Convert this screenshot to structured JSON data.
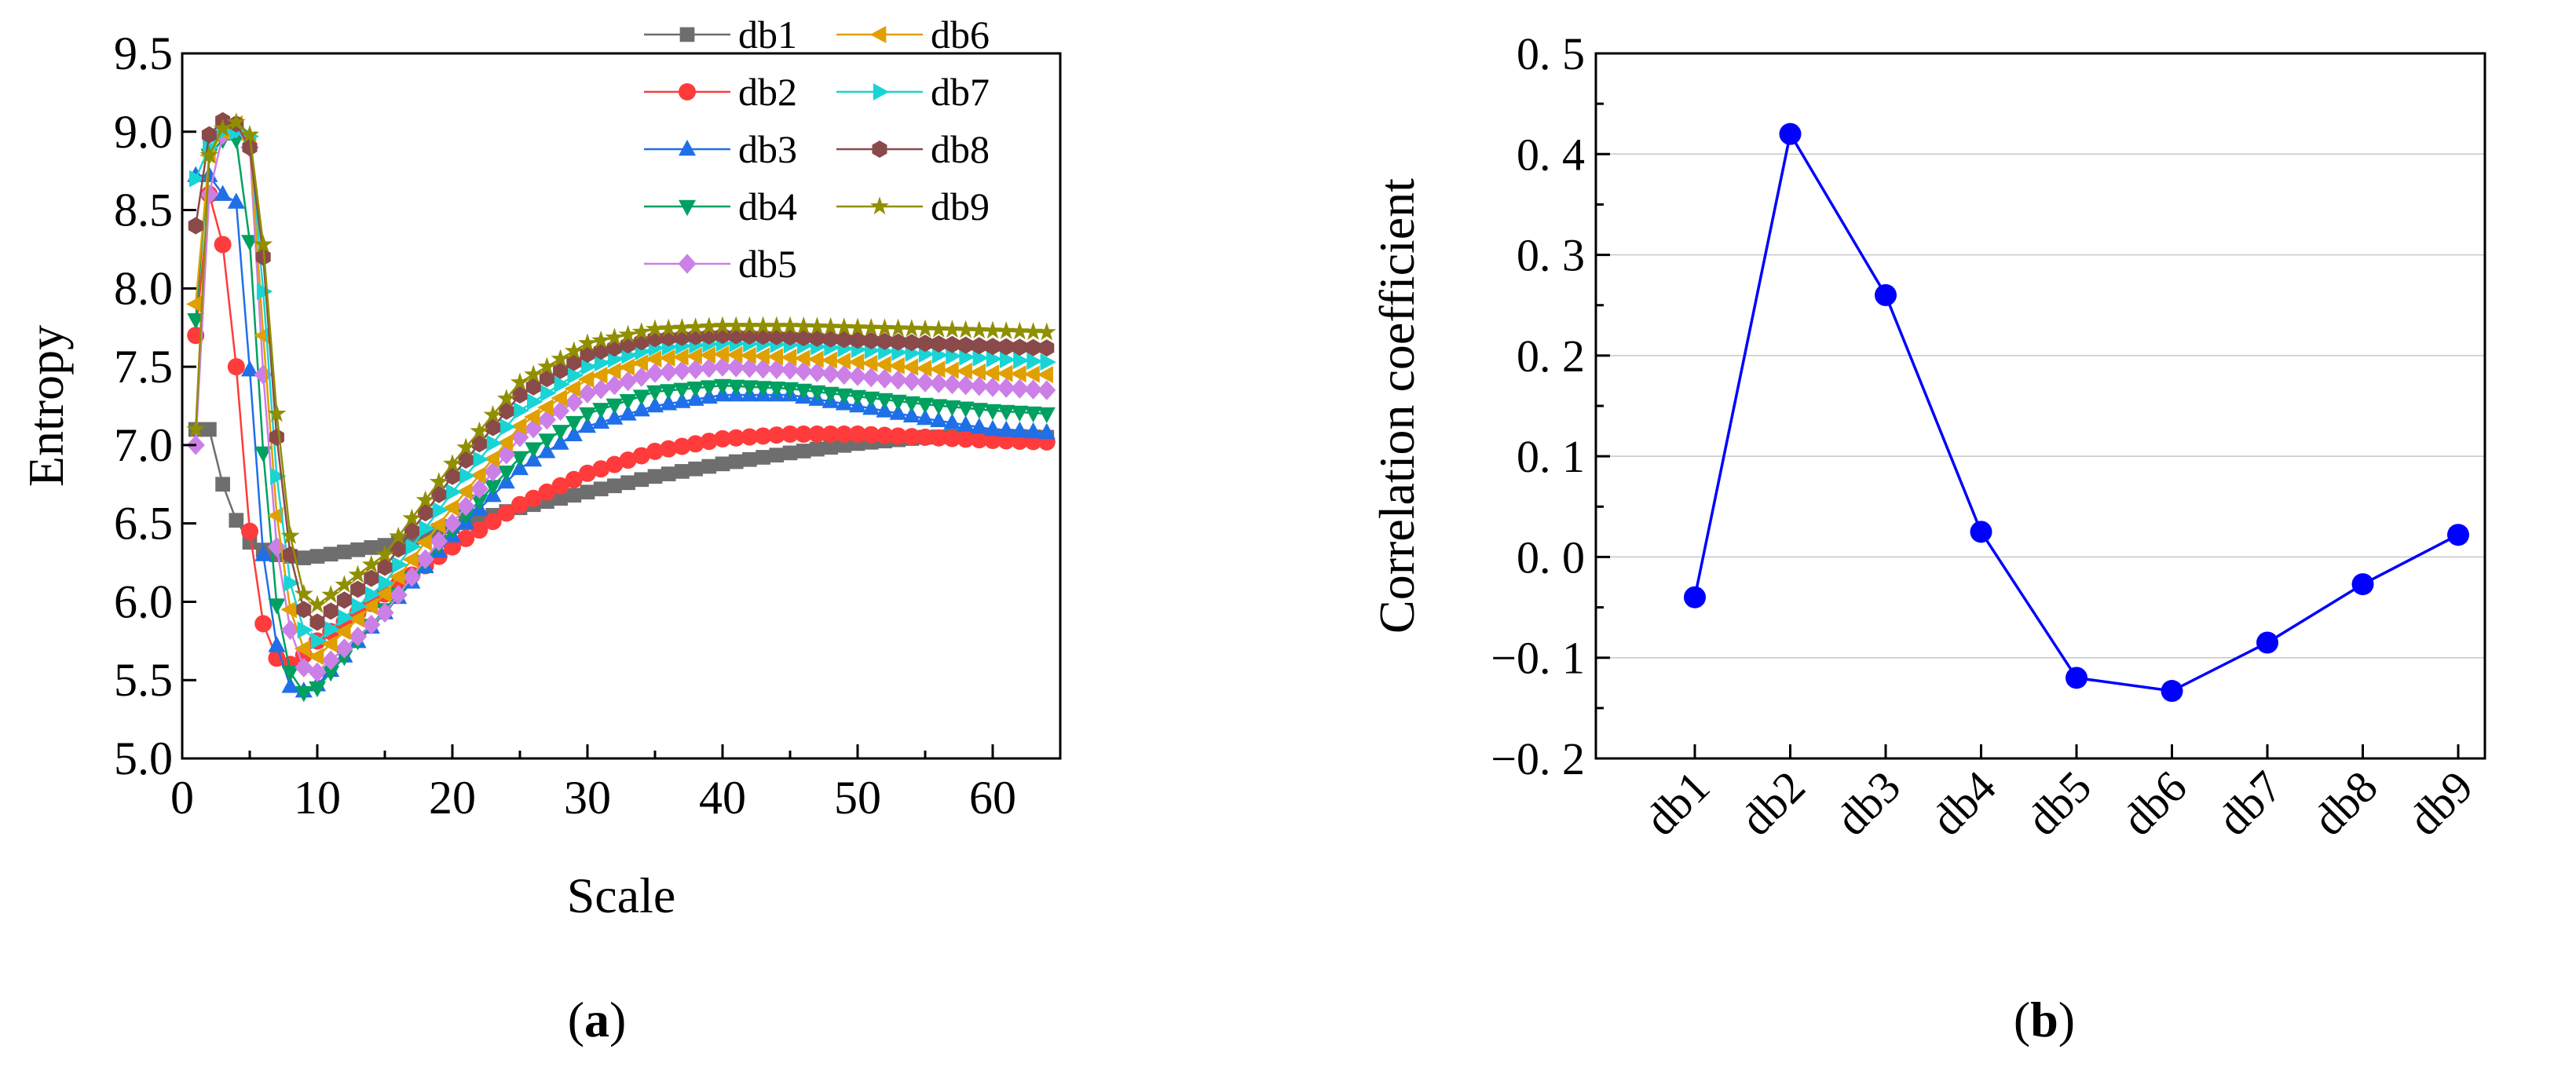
{
  "chart_data": [
    {
      "panel": "a",
      "caption": "(a)",
      "type": "line",
      "xlabel": "Scale",
      "ylabel": "Entropy",
      "xlim": [
        0,
        65
      ],
      "ylim": [
        5.0,
        9.5
      ],
      "xticks": [
        0,
        10,
        20,
        30,
        40,
        50,
        60
      ],
      "yticks": [
        5.0,
        5.5,
        6.0,
        6.5,
        7.0,
        7.5,
        8.0,
        8.5,
        9.0,
        9.5
      ],
      "legend_position": "top-right",
      "series": [
        {
          "name": "db1",
          "color": "#6e6e6e",
          "marker": "square",
          "key": [
            [
              1,
              7.1
            ],
            [
              2,
              7.1
            ],
            [
              3,
              6.75
            ],
            [
              4,
              6.52
            ],
            [
              5,
              6.38
            ],
            [
              6,
              6.33
            ],
            [
              7,
              6.3
            ],
            [
              8,
              6.29
            ],
            [
              9,
              6.28
            ],
            [
              10,
              6.29
            ],
            [
              15,
              6.36
            ],
            [
              20,
              6.48
            ],
            [
              25,
              6.6
            ],
            [
              30,
              6.7
            ],
            [
              35,
              6.8
            ],
            [
              40,
              6.88
            ],
            [
              45,
              6.95
            ],
            [
              50,
              7.01
            ],
            [
              55,
              7.05
            ],
            [
              60,
              7.06
            ],
            [
              64,
              7.05
            ]
          ]
        },
        {
          "name": "db2",
          "color": "#ff3b3b",
          "marker": "circle",
          "key": [
            [
              1,
              7.7
            ],
            [
              2,
              8.6
            ],
            [
              3,
              8.28
            ],
            [
              4,
              7.5
            ],
            [
              5,
              6.45
            ],
            [
              6,
              5.86
            ],
            [
              7,
              5.64
            ],
            [
              8,
              5.6
            ],
            [
              9,
              5.66
            ],
            [
              10,
              5.75
            ],
            [
              15,
              6.05
            ],
            [
              20,
              6.35
            ],
            [
              25,
              6.62
            ],
            [
              30,
              6.82
            ],
            [
              35,
              6.96
            ],
            [
              40,
              7.04
            ],
            [
              45,
              7.07
            ],
            [
              50,
              7.07
            ],
            [
              55,
              7.05
            ],
            [
              60,
              7.03
            ],
            [
              64,
              7.02
            ]
          ]
        },
        {
          "name": "db3",
          "color": "#1f6fe8",
          "marker": "triangle-up",
          "key": [
            [
              1,
              8.72
            ],
            [
              2,
              8.72
            ],
            [
              3,
              8.6
            ],
            [
              4,
              8.55
            ],
            [
              5,
              7.48
            ],
            [
              6,
              6.3
            ],
            [
              7,
              5.72
            ],
            [
              8,
              5.46
            ],
            [
              9,
              5.43
            ],
            [
              10,
              5.47
            ],
            [
              15,
              5.93
            ],
            [
              20,
              6.42
            ],
            [
              25,
              6.85
            ],
            [
              30,
              7.12
            ],
            [
              35,
              7.25
            ],
            [
              40,
              7.32
            ],
            [
              45,
              7.32
            ],
            [
              50,
              7.25
            ],
            [
              55,
              7.17
            ],
            [
              60,
              7.1
            ],
            [
              64,
              7.08
            ]
          ]
        },
        {
          "name": "db4",
          "color": "#00a060",
          "marker": "triangle-down",
          "key": [
            [
              1,
              7.8
            ],
            [
              2,
              8.85
            ],
            [
              3,
              8.95
            ],
            [
              4,
              8.95
            ],
            [
              5,
              8.3
            ],
            [
              6,
              6.95
            ],
            [
              7,
              5.98
            ],
            [
              8,
              5.55
            ],
            [
              9,
              5.42
            ],
            [
              10,
              5.45
            ],
            [
              15,
              5.95
            ],
            [
              20,
              6.46
            ],
            [
              25,
              6.92
            ],
            [
              30,
              7.2
            ],
            [
              35,
              7.34
            ],
            [
              40,
              7.38
            ],
            [
              45,
              7.36
            ],
            [
              50,
              7.31
            ],
            [
              55,
              7.26
            ],
            [
              60,
              7.22
            ],
            [
              64,
              7.2
            ]
          ]
        },
        {
          "name": "db5",
          "color": "#cc7fe6",
          "marker": "diamond",
          "key": [
            [
              1,
              7.0
            ],
            [
              2,
              8.6
            ],
            [
              3,
              8.98
            ],
            [
              4,
              9.02
            ],
            [
              5,
              8.9
            ],
            [
              6,
              7.45
            ],
            [
              7,
              6.35
            ],
            [
              8,
              5.82
            ],
            [
              9,
              5.58
            ],
            [
              10,
              5.55
            ],
            [
              15,
              5.93
            ],
            [
              20,
              6.5
            ],
            [
              25,
              7.05
            ],
            [
              30,
              7.33
            ],
            [
              35,
              7.46
            ],
            [
              40,
              7.5
            ],
            [
              45,
              7.48
            ],
            [
              50,
              7.44
            ],
            [
              55,
              7.4
            ],
            [
              60,
              7.37
            ],
            [
              64,
              7.35
            ]
          ]
        },
        {
          "name": "db6",
          "color": "#e0a000",
          "marker": "triangle-left",
          "key": [
            [
              1,
              7.9
            ],
            [
              2,
              8.85
            ],
            [
              3,
              9.0
            ],
            [
              4,
              9.05
            ],
            [
              5,
              8.95
            ],
            [
              6,
              7.7
            ],
            [
              7,
              6.55
            ],
            [
              8,
              5.95
            ],
            [
              9,
              5.7
            ],
            [
              10,
              5.65
            ],
            [
              15,
              6.05
            ],
            [
              20,
              6.6
            ],
            [
              25,
              7.12
            ],
            [
              30,
              7.42
            ],
            [
              35,
              7.55
            ],
            [
              40,
              7.58
            ],
            [
              45,
              7.56
            ],
            [
              50,
              7.53
            ],
            [
              55,
              7.49
            ],
            [
              60,
              7.46
            ],
            [
              64,
              7.45
            ]
          ]
        },
        {
          "name": "db7",
          "color": "#19d4d4",
          "marker": "triangle-right",
          "key": [
            [
              1,
              8.7
            ],
            [
              2,
              8.9
            ],
            [
              3,
              9.0
            ],
            [
              4,
              9.0
            ],
            [
              5,
              8.97
            ],
            [
              6,
              7.98
            ],
            [
              7,
              6.8
            ],
            [
              8,
              6.12
            ],
            [
              9,
              5.82
            ],
            [
              10,
              5.75
            ],
            [
              15,
              6.12
            ],
            [
              20,
              6.7
            ],
            [
              25,
              7.22
            ],
            [
              30,
              7.5
            ],
            [
              35,
              7.62
            ],
            [
              40,
              7.65
            ],
            [
              45,
              7.64
            ],
            [
              50,
              7.61
            ],
            [
              55,
              7.58
            ],
            [
              60,
              7.55
            ],
            [
              64,
              7.53
            ]
          ]
        },
        {
          "name": "db8",
          "color": "#8b4a4a",
          "marker": "hexagon",
          "key": [
            [
              1,
              8.4
            ],
            [
              2,
              8.98
            ],
            [
              3,
              9.07
            ],
            [
              4,
              9.05
            ],
            [
              5,
              8.9
            ],
            [
              6,
              8.2
            ],
            [
              7,
              7.05
            ],
            [
              8,
              6.3
            ],
            [
              9,
              5.95
            ],
            [
              10,
              5.87
            ],
            [
              15,
              6.22
            ],
            [
              20,
              6.8
            ],
            [
              25,
              7.32
            ],
            [
              30,
              7.58
            ],
            [
              35,
              7.68
            ],
            [
              40,
              7.7
            ],
            [
              45,
              7.69
            ],
            [
              50,
              7.67
            ],
            [
              55,
              7.65
            ],
            [
              60,
              7.63
            ],
            [
              64,
              7.62
            ]
          ]
        },
        {
          "name": "db9",
          "color": "#8f8f00",
          "marker": "star",
          "key": [
            [
              1,
              7.1
            ],
            [
              2,
              8.85
            ],
            [
              3,
              9.02
            ],
            [
              4,
              9.06
            ],
            [
              5,
              8.98
            ],
            [
              6,
              8.28
            ],
            [
              7,
              7.2
            ],
            [
              8,
              6.42
            ],
            [
              9,
              6.05
            ],
            [
              10,
              5.98
            ],
            [
              15,
              6.3
            ],
            [
              20,
              6.88
            ],
            [
              25,
              7.4
            ],
            [
              30,
              7.65
            ],
            [
              35,
              7.74
            ],
            [
              40,
              7.76
            ],
            [
              45,
              7.76
            ],
            [
              50,
              7.75
            ],
            [
              55,
              7.74
            ],
            [
              60,
              7.73
            ],
            [
              64,
              7.72
            ]
          ]
        }
      ]
    },
    {
      "panel": "b",
      "caption": "(b)",
      "type": "line",
      "xlabel": "",
      "ylabel": "Correlation coefficient",
      "categories": [
        "db1",
        "db2",
        "db3",
        "db4",
        "db5",
        "db6",
        "db7",
        "db8",
        "db9"
      ],
      "values": [
        -0.04,
        0.42,
        0.26,
        0.025,
        -0.12,
        -0.133,
        -0.085,
        -0.027,
        0.022
      ],
      "ylim": [
        -0.2,
        0.5
      ],
      "yticks": [
        -0.2,
        -0.1,
        0.0,
        0.1,
        0.2,
        0.3,
        0.4,
        0.5
      ],
      "ytick_labels": [
        "−0. 2",
        "−0. 1",
        "0. 0",
        "0. 1",
        "0. 2",
        "0. 3",
        "0. 4",
        "0. 5"
      ],
      "grid": true,
      "color": "#0000ff"
    }
  ]
}
